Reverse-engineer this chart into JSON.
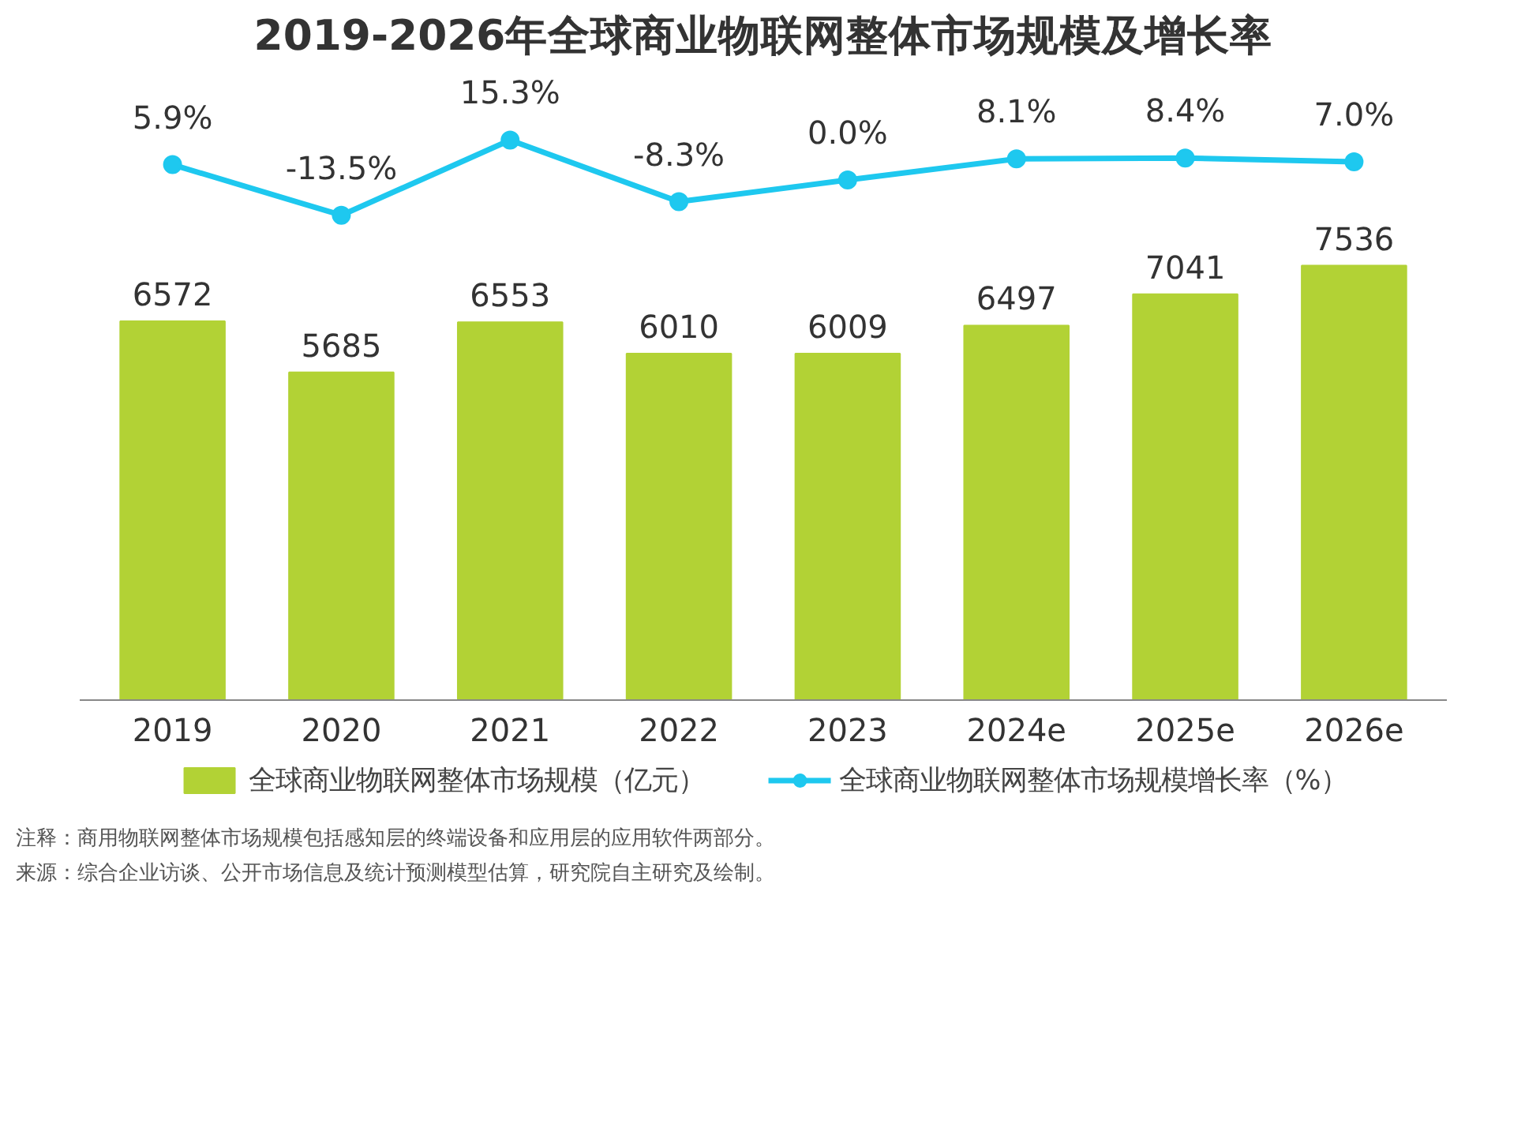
{
  "chart_data": [
    {
      "type": "line",
      "title": "2019-2026年全球商业物联网整体市场规模及增长率",
      "categories": [
        null,
        null,
        null,
        null,
        null,
        null,
        null,
        null
      ],
      "series": [
        {
          "name": "全球商业物联网整体市场规模增长率（%）",
          "color": "#1ec8ef",
          "values": [
            5.9,
            -13.5,
            15.3,
            -8.3,
            0.0,
            8.1,
            8.4,
            7.0
          ],
          "value_labels": [
            "5.9%",
            "-13.5%",
            "15.3%",
            "-8.3%",
            "0.0%",
            "8.1%",
            "8.4%",
            "7.0%"
          ]
        }
      ],
      "tick_labels": false,
      "grid": false,
      "legend": "bottom",
      "marker": "circle",
      "line_style": "solid"
    },
    {
      "type": "bar",
      "categories": [
        "2019",
        "2020",
        "2021",
        "2022",
        "2023",
        "2024e",
        "2025e",
        "2026e"
      ],
      "series": [
        {
          "name": "全球商业物联网整体市场规模（亿元）",
          "color": "#b2d235",
          "values": [
            6572,
            5685,
            6553,
            6010,
            6009,
            6497,
            7041,
            7536
          ]
        }
      ],
      "data_labels": true,
      "tick_labels": "x",
      "grid": false,
      "legend": "bottom",
      "annotations": [
        "注释：商用物联网整体市场规模包括感知层的终端设备和应用层的应用软件两部分。",
        "来源：综合企业访谈、公开市场信息及统计预测模型估算，研究院自主研究及绘制。"
      ]
    }
  ]
}
